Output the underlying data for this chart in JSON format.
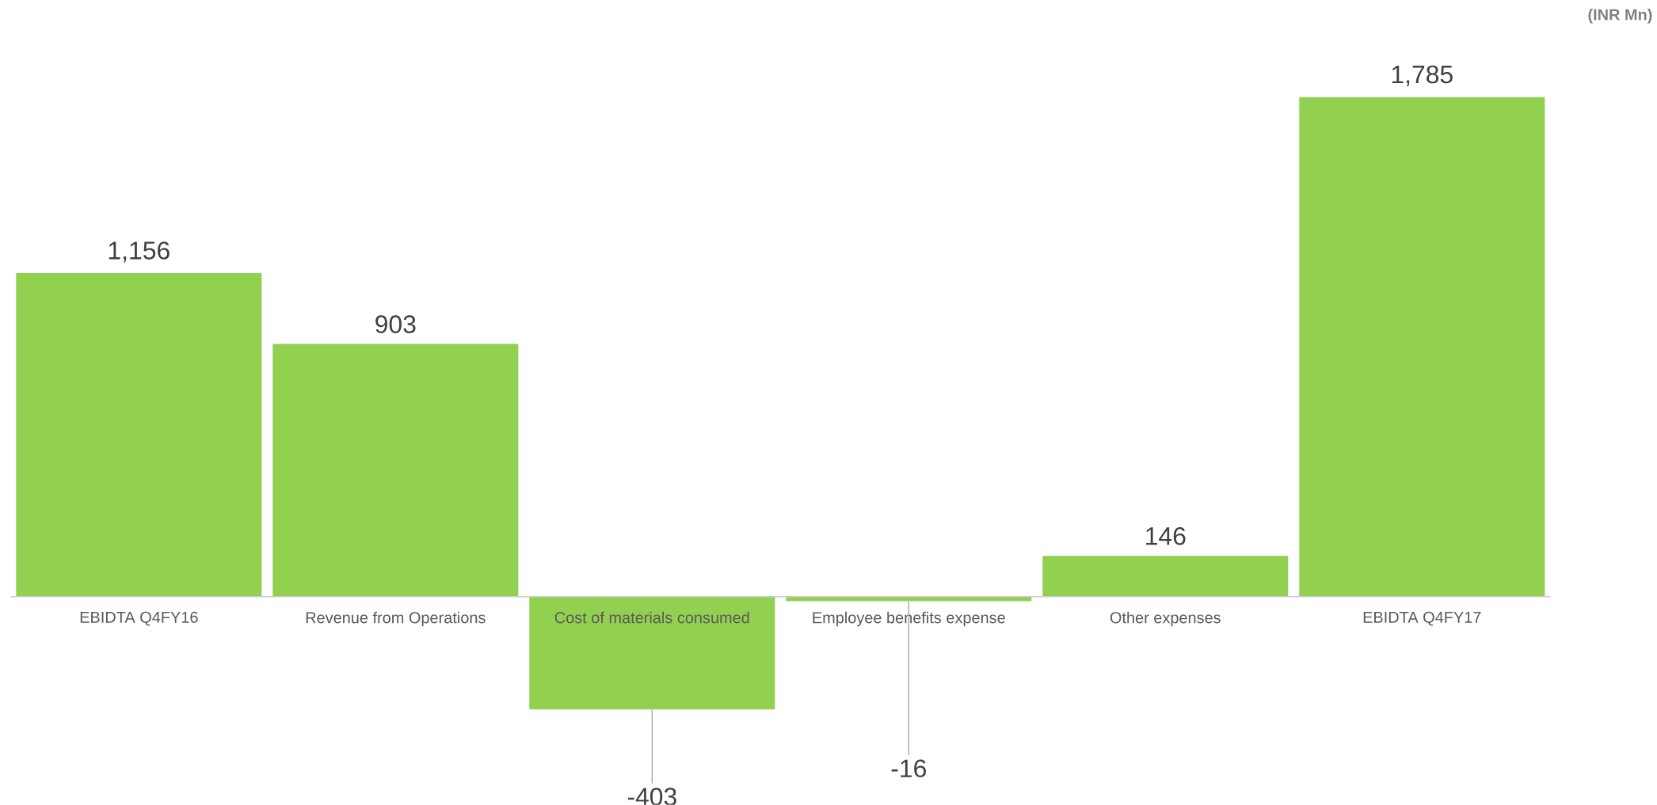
{
  "chart_data": {
    "type": "bar",
    "categories": [
      "EBIDTA  Q4FY16",
      "Revenue from Operations",
      "Cost of materials consumed",
      "Employee benefits expense",
      "Other expenses",
      "EBIDTA  Q4FY17"
    ],
    "values": [
      1156,
      903,
      -403,
      -16,
      146,
      1785
    ],
    "color": "#92d050",
    "value_labels": [
      "1,156",
      "903",
      "-403",
      "-16",
      "146",
      "1,785"
    ],
    "annotations": [
      "(INR Mn)"
    ]
  }
}
